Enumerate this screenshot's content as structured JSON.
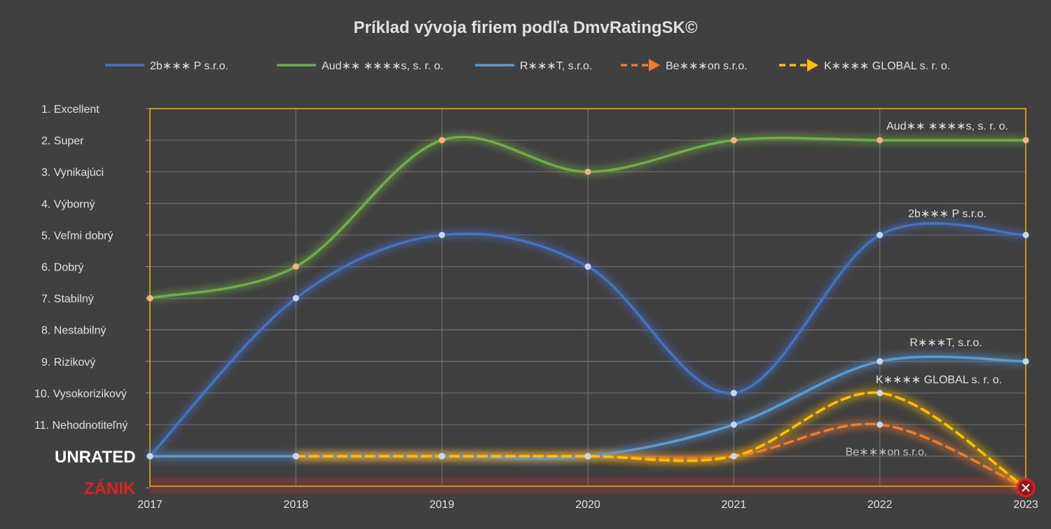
{
  "chart_data": {
    "type": "line",
    "title": "Príklad vývoja firiem podľa DmvRatingSK©",
    "categories": [
      "2017",
      "2018",
      "2019",
      "2020",
      "2021",
      "2022",
      "2023"
    ],
    "y_categories": [
      "1. Excellent",
      "2. Super",
      "3. Vynikajúci",
      "4. Výborný",
      "5. Veľmi dobrý",
      "6. Dobrý",
      "7. Stabilný",
      "8. Nestabilný",
      "9. Rizikový",
      "10. Vysokorizikový",
      "11. Nehodnotiteľný",
      "UNRATED",
      "ZÁNIK"
    ],
    "ylim": [
      1,
      13
    ],
    "y_reversed": true,
    "legend_position": "top",
    "grid": true,
    "colors": {
      "background": "#404040",
      "plot_border": "#E6B800",
      "grid": "#6A6A6A",
      "zanik_band": "#6B3A3A",
      "zanik_label": "#E02020",
      "unrated_label": "#FFFFFF",
      "axis_text": "#E0E0E0"
    },
    "series": [
      {
        "name": "2b∗∗∗ P s.r.o.",
        "color": "#4472C4",
        "dashed": false,
        "values": [
          12,
          7,
          5,
          6,
          10,
          5,
          5
        ],
        "end_label": "2b∗∗∗ P s.r.o."
      },
      {
        "name": "Aud∗∗ ∗∗∗∗s, s. r. o.",
        "color": "#70AD47",
        "dashed": false,
        "values": [
          7,
          6,
          2,
          3,
          2,
          2,
          2
        ],
        "end_label": "Aud∗∗ ∗∗∗∗s, s. r. o."
      },
      {
        "name": "R∗∗∗T, s.r.o.",
        "color": "#5B9BD5",
        "dashed": false,
        "values": [
          12,
          12,
          12,
          12,
          11,
          9,
          9
        ],
        "end_label": "R∗∗∗T, s.r.o."
      },
      {
        "name": "Be∗∗∗on s.r.o.",
        "color": "#ED7D31",
        "dashed": true,
        "values": [
          null,
          12,
          12,
          12,
          12,
          11,
          13
        ],
        "end_label": "Be∗∗∗on s.r.o."
      },
      {
        "name": "K∗∗∗∗ GLOBAL s. r. o.",
        "color": "#FFC000",
        "dashed": true,
        "values": [
          null,
          12,
          12,
          12,
          12,
          10,
          13
        ],
        "end_label": "K∗∗∗∗ GLOBAL s. r. o."
      }
    ],
    "end_marker_icon": "close-circle-icon"
  }
}
